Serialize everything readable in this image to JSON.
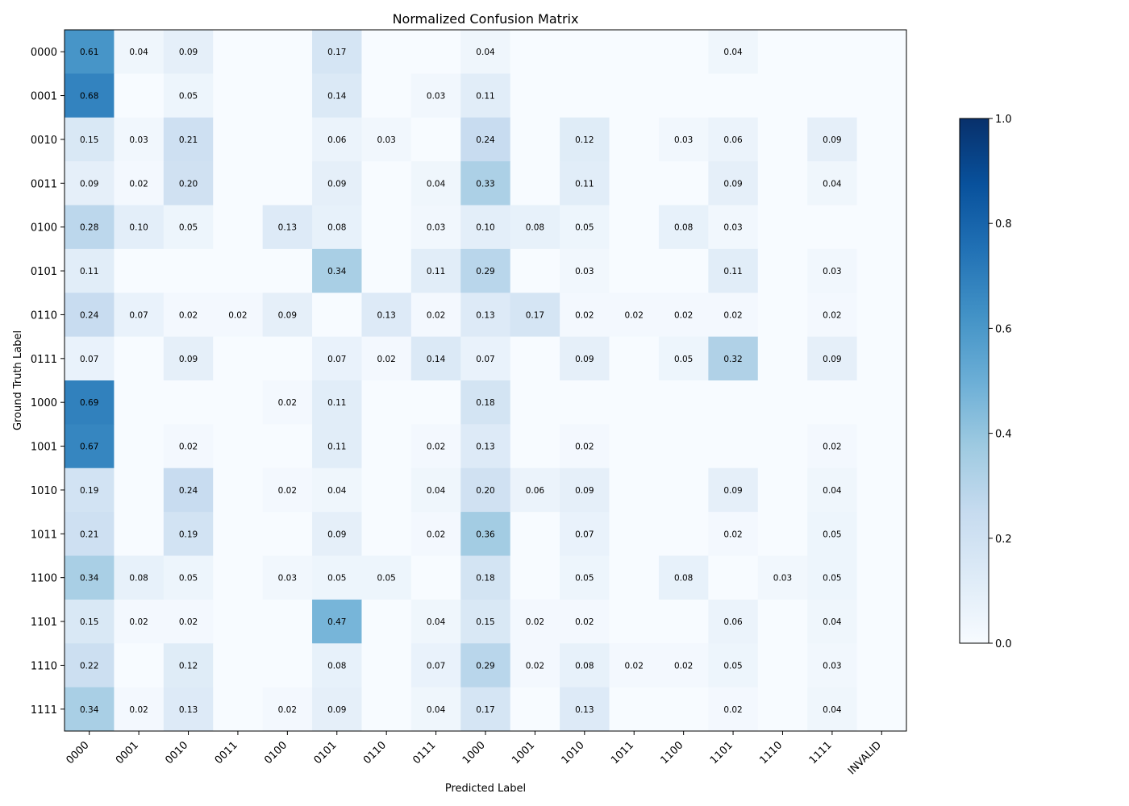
{
  "chart_data": {
    "type": "heatmap",
    "title": "Normalized Confusion Matrix",
    "xlabel": "Predicted Label",
    "ylabel": "Ground Truth Label",
    "x_categories": [
      "0000",
      "0001",
      "0010",
      "0011",
      "0100",
      "0101",
      "0110",
      "0111",
      "1000",
      "1001",
      "1010",
      "1011",
      "1100",
      "1101",
      "1110",
      "1111",
      "INVALID"
    ],
    "y_categories": [
      "0000",
      "0001",
      "0010",
      "0011",
      "0100",
      "0101",
      "0110",
      "0111",
      "1000",
      "1001",
      "1010",
      "1011",
      "1100",
      "1101",
      "1110",
      "1111"
    ],
    "values": [
      [
        0.61,
        0.04,
        0.09,
        0,
        0,
        0.17,
        0,
        0,
        0.04,
        0,
        0,
        0,
        0,
        0.04,
        0,
        0,
        0
      ],
      [
        0.68,
        0,
        0.05,
        0,
        0,
        0.14,
        0,
        0.03,
        0.11,
        0,
        0,
        0,
        0,
        0,
        0,
        0,
        0
      ],
      [
        0.15,
        0.03,
        0.21,
        0,
        0,
        0.06,
        0.03,
        0,
        0.24,
        0,
        0.12,
        0,
        0.03,
        0.06,
        0,
        0.09,
        0
      ],
      [
        0.09,
        0.02,
        0.2,
        0,
        0,
        0.09,
        0,
        0.04,
        0.33,
        0,
        0.11,
        0,
        0,
        0.09,
        0,
        0.04,
        0
      ],
      [
        0.28,
        0.1,
        0.05,
        0,
        0.13,
        0.08,
        0,
        0.03,
        0.1,
        0.08,
        0.05,
        0,
        0.08,
        0.03,
        0,
        0,
        0
      ],
      [
        0.11,
        0,
        0,
        0,
        0,
        0.34,
        0,
        0.11,
        0.29,
        0,
        0.03,
        0,
        0,
        0.11,
        0,
        0.03,
        0
      ],
      [
        0.24,
        0.07,
        0.02,
        0.02,
        0.09,
        0,
        0.13,
        0.02,
        0.13,
        0.17,
        0.02,
        0.02,
        0.02,
        0.02,
        0,
        0.02,
        0
      ],
      [
        0.07,
        0,
        0.09,
        0,
        0,
        0.07,
        0.02,
        0.14,
        0.07,
        0,
        0.09,
        0,
        0.05,
        0.32,
        0,
        0.09,
        0
      ],
      [
        0.69,
        0,
        0,
        0,
        0.02,
        0.11,
        0,
        0,
        0.18,
        0,
        0,
        0,
        0,
        0,
        0,
        0,
        0
      ],
      [
        0.67,
        0,
        0.02,
        0,
        0,
        0.11,
        0,
        0.02,
        0.13,
        0,
        0.02,
        0,
        0,
        0,
        0,
        0.02,
        0
      ],
      [
        0.19,
        0,
        0.24,
        0,
        0.02,
        0.04,
        0,
        0.04,
        0.2,
        0.06,
        0.09,
        0,
        0,
        0.09,
        0,
        0.04,
        0
      ],
      [
        0.21,
        0,
        0.19,
        0,
        0,
        0.09,
        0,
        0.02,
        0.36,
        0,
        0.07,
        0,
        0,
        0.02,
        0,
        0.05,
        0
      ],
      [
        0.34,
        0.08,
        0.05,
        0,
        0.03,
        0.05,
        0.05,
        0,
        0.18,
        0,
        0.05,
        0,
        0.08,
        0,
        0.03,
        0.05,
        0
      ],
      [
        0.15,
        0.02,
        0.02,
        0,
        0,
        0.47,
        0,
        0.04,
        0.15,
        0.02,
        0.02,
        0,
        0,
        0.06,
        0,
        0.04,
        0
      ],
      [
        0.22,
        0,
        0.12,
        0,
        0,
        0.08,
        0,
        0.07,
        0.29,
        0.02,
        0.08,
        0.02,
        0.02,
        0.05,
        0,
        0.03,
        0
      ],
      [
        0.34,
        0.02,
        0.13,
        0,
        0.02,
        0.09,
        0,
        0.04,
        0.17,
        0,
        0.13,
        0,
        0,
        0.02,
        0,
        0.04,
        0
      ]
    ],
    "value_range": [
      0.0,
      1.0
    ],
    "colormap": "Blues",
    "colorbar_ticks": [
      "0.0",
      "0.2",
      "0.4",
      "0.6",
      "0.8",
      "1.0"
    ],
    "annotate_zero_cells": false,
    "grid": false,
    "legend": "colorbar-right"
  },
  "colors": {
    "blues": [
      "#f7fbff",
      "#deebf7",
      "#c6dbef",
      "#9ecae1",
      "#6baed6",
      "#4292c6",
      "#2171b5",
      "#08519c",
      "#08306b"
    ]
  }
}
